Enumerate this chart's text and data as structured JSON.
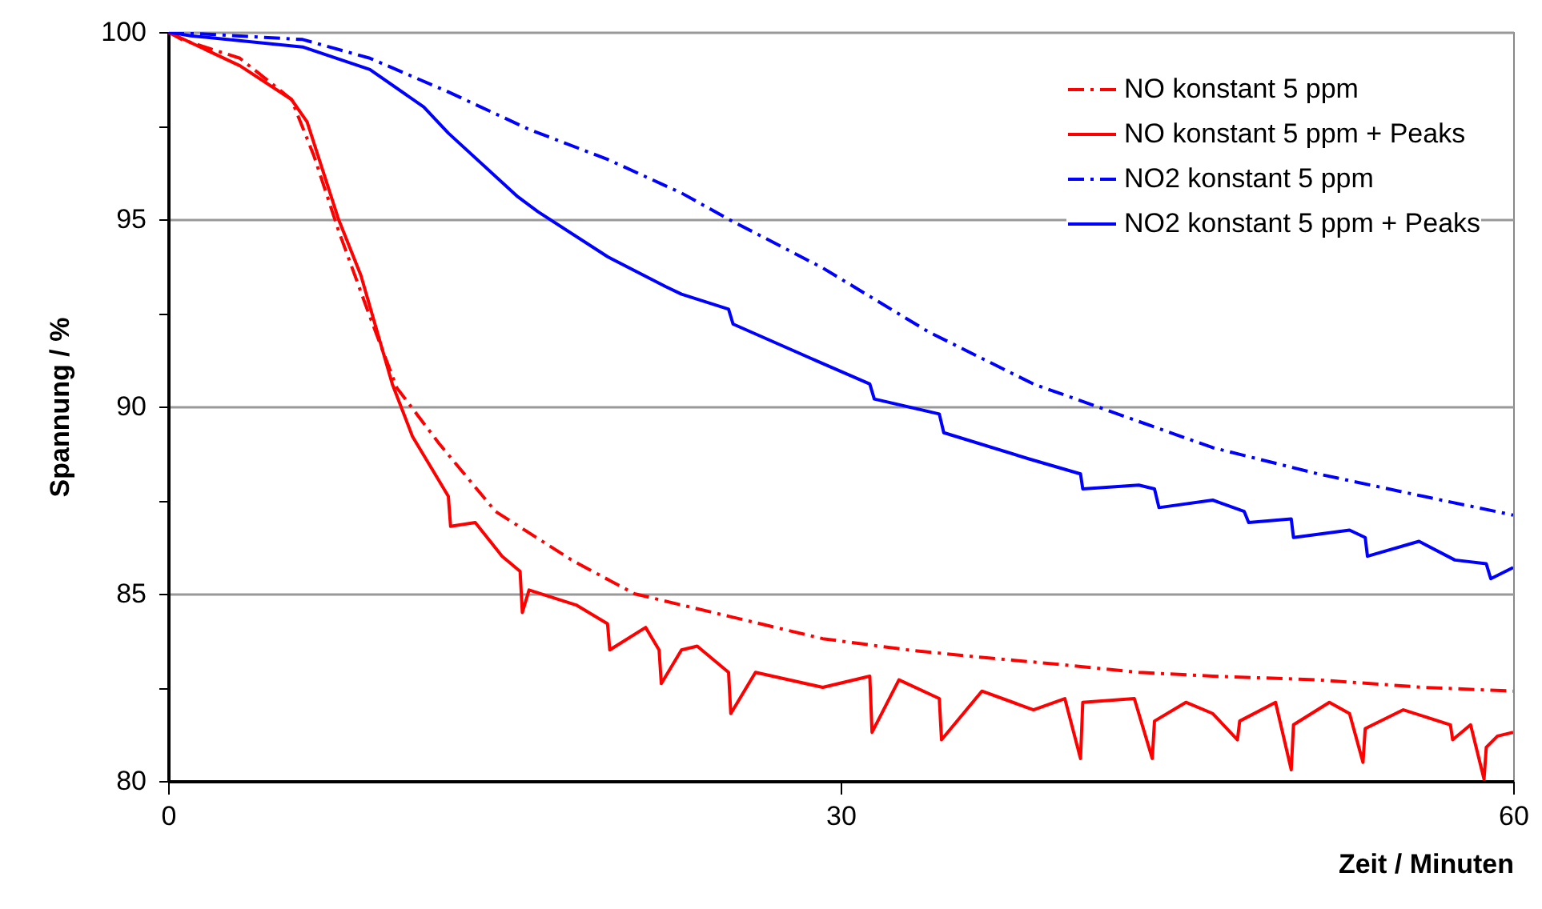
{
  "chart_data": {
    "type": "line",
    "xlabel": "Zeit / Minuten",
    "ylabel": "Spannung / %",
    "xlim": [
      0,
      60
    ],
    "ylim": [
      80,
      100
    ],
    "xticks": [
      0,
      30,
      60
    ],
    "yticks": [
      80,
      {
        "value": 82.5,
        "label": null
      },
      85,
      {
        "value": 87.5,
        "label": null
      },
      90,
      {
        "value": 92.5,
        "label": null
      },
      95,
      {
        "value": 97.5,
        "label": null
      },
      100
    ],
    "grid": "y",
    "legend": "top right",
    "marker": "none",
    "series": [
      {
        "name": "NO konstant 5 ppm",
        "color": "#ff0000",
        "line_style": "dashdot",
        "x": [
          0,
          0.6,
          3.2,
          5.5,
          6.5,
          7.6,
          9.0,
          10.2,
          12.1,
          14.6,
          18.0,
          20.8,
          22.9,
          25,
          29.2,
          33,
          36.3,
          40,
          43.3,
          46.6,
          51.3,
          56,
          60
        ],
        "values": [
          100,
          99.8,
          99.3,
          98.2,
          96.7,
          94.7,
          92.4,
          90.5,
          89.0,
          87.2,
          85.9,
          85.0,
          84.7,
          84.4,
          83.8,
          83.5,
          83.3,
          83.1,
          82.9,
          82.8,
          82.7,
          82.5,
          82.4
        ]
      },
      {
        "name": "NO konstant 5 ppm + Peaks",
        "color": "#ff0000",
        "line_style": "solid",
        "x": [
          0,
          3.2,
          5.5,
          6.2,
          7.6,
          8.6,
          10,
          10.9,
          11.8,
          12.5,
          12.6,
          13.7,
          14.9,
          15.7,
          15.8,
          16.1,
          18.2,
          19.6,
          19.7,
          21.3,
          21.9,
          22.0,
          22.9,
          23.6,
          25,
          25.1,
          26.2,
          29.2,
          31.3,
          31.4,
          32.6,
          34.4,
          34.5,
          36.3,
          38.6,
          40,
          40.7,
          40.8,
          43.1,
          43.9,
          44.0,
          45.4,
          46.6,
          47.7,
          47.8,
          49.4,
          50.1,
          50.2,
          51.8,
          52.7,
          53.3,
          53.4,
          55.1,
          57.2,
          57.3,
          58.1,
          58.7,
          58.8,
          59.3,
          60
        ],
        "values": [
          100,
          99.1,
          98.2,
          97.6,
          95,
          93.5,
          90.6,
          89.2,
          88.3,
          87.6,
          86.8,
          86.9,
          86.0,
          85.6,
          84.5,
          85.1,
          84.7,
          84.2,
          83.5,
          84.1,
          83.5,
          82.6,
          83.5,
          83.6,
          82.9,
          81.8,
          82.9,
          82.5,
          82.8,
          81.3,
          82.7,
          82.2,
          81.1,
          82.4,
          81.9,
          82.2,
          80.6,
          82.1,
          82.2,
          80.6,
          81.6,
          82.1,
          81.8,
          81.1,
          81.6,
          82.1,
          80.3,
          81.5,
          82.1,
          81.8,
          80.5,
          81.4,
          81.9,
          81.5,
          81.1,
          81.5,
          80.05,
          80.9,
          81.2,
          81.3
        ]
      },
      {
        "name": "NO2 konstant 5 ppm",
        "color": "#0000ff",
        "line_style": "dashdot",
        "x": [
          0,
          6,
          9,
          12.5,
          16.1,
          19.6,
          22.9,
          25,
          29.2,
          33.9,
          38.6,
          41.9,
          43.3,
          46.6,
          51.3,
          56,
          60
        ],
        "values": [
          100,
          99.8,
          99.3,
          98.4,
          97.4,
          96.6,
          95.7,
          95,
          93.7,
          92.0,
          90.6,
          89.9,
          89.6,
          88.9,
          88.2,
          87.6,
          87.1
        ]
      },
      {
        "name": "NO2 konstant 5 ppm + Peaks",
        "color": "#0000ff",
        "line_style": "solid",
        "x": [
          0,
          1,
          6,
          9,
          11.4,
          12.5,
          15.6,
          16.5,
          19.6,
          22.2,
          22.9,
          25,
          25.2,
          29,
          31.3,
          31.5,
          34.4,
          34.6,
          38.4,
          40.7,
          40.8,
          43.3,
          44,
          44.2,
          46.6,
          48,
          48.2,
          50.1,
          50.2,
          52.7,
          53.4,
          53.5,
          55.8,
          57.4,
          58.8,
          59,
          60
        ],
        "values": [
          100,
          99.9,
          99.6,
          99.0,
          98.0,
          97.3,
          95.6,
          95.2,
          94.0,
          93.2,
          93.0,
          92.6,
          92.2,
          91.2,
          90.6,
          90.2,
          89.8,
          89.3,
          88.6,
          88.2,
          87.8,
          87.9,
          87.8,
          87.3,
          87.5,
          87.2,
          86.9,
          87.0,
          86.5,
          86.7,
          86.5,
          86.0,
          86.4,
          85.9,
          85.8,
          85.4,
          85.7
        ]
      }
    ]
  }
}
